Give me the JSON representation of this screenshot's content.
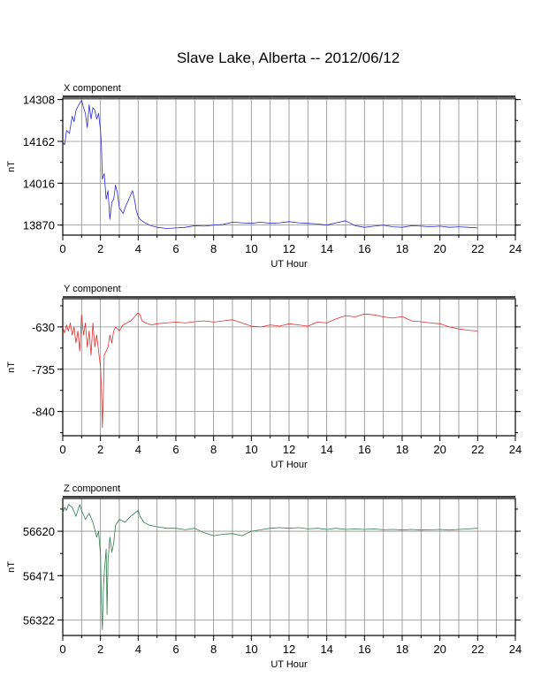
{
  "title": "Slave Lake, Alberta -- 2012/06/12",
  "colors": {
    "x": "#2a2ad0",
    "y": "#e03030",
    "z": "#2e7d4e",
    "grid": "#8c8c8c"
  },
  "chart_data": [
    {
      "type": "line",
      "panel_title": "X component",
      "xlabel": "UT Hour",
      "ylabel": "nT",
      "xlim": [
        0,
        24
      ],
      "xticks": [
        0,
        2,
        4,
        6,
        8,
        10,
        12,
        14,
        16,
        18,
        20,
        22,
        24
      ],
      "ylim": [
        13835,
        14313
      ],
      "yticks": [
        13870,
        14016,
        14162,
        14308
      ],
      "series": [
        {
          "x": [
            0,
            0.1,
            0.2,
            0.35,
            0.5,
            0.6,
            0.7,
            0.85,
            1.0,
            1.1,
            1.2,
            1.3,
            1.4,
            1.5,
            1.6,
            1.7,
            1.8,
            1.9,
            2.0,
            2.05,
            2.1,
            2.2,
            2.3,
            2.4,
            2.5,
            2.6,
            2.7,
            2.8,
            2.9,
            3.0,
            3.1,
            3.2,
            3.3,
            3.5,
            3.7,
            3.8,
            3.9,
            4.0,
            4.1,
            4.3,
            4.6,
            5.0,
            5.5,
            6.0,
            6.5,
            7.0,
            7.5,
            8.0,
            8.5,
            9.0,
            9.5,
            10.0,
            10.5,
            11.0,
            11.5,
            12.0,
            12.5,
            13.0,
            13.5,
            14.0,
            14.5,
            15.0,
            15.5,
            16.0,
            16.5,
            17.0,
            17.5,
            18.0,
            18.5,
            19.0,
            19.5,
            20.0,
            20.5,
            21.0,
            21.5,
            22.0
          ],
          "y": [
            14160,
            14150,
            14200,
            14190,
            14250,
            14230,
            14270,
            14290,
            14305,
            14280,
            14260,
            14210,
            14290,
            14240,
            14280,
            14270,
            14240,
            14260,
            14200,
            14150,
            14030,
            14050,
            13960,
            13990,
            13890,
            13950,
            13960,
            14010,
            13980,
            13930,
            13920,
            13910,
            13930,
            13960,
            13990,
            13960,
            13920,
            13900,
            13890,
            13880,
            13870,
            13862,
            13858,
            13860,
            13862,
            13868,
            13866,
            13870,
            13872,
            13880,
            13878,
            13876,
            13880,
            13876,
            13878,
            13882,
            13878,
            13876,
            13874,
            13870,
            13878,
            13885,
            13868,
            13862,
            13866,
            13870,
            13864,
            13862,
            13868,
            13866,
            13864,
            13866,
            13862,
            13864,
            13862,
            13860
          ]
        }
      ]
    },
    {
      "type": "line",
      "panel_title": "Y component",
      "xlabel": "UT Hour",
      "ylabel": "nT",
      "xlim": [
        0,
        24
      ],
      "xticks": [
        0,
        2,
        4,
        6,
        8,
        10,
        12,
        14,
        16,
        18,
        20,
        22,
        24
      ],
      "ylim": [
        -900,
        -560
      ],
      "yticks": [
        -630,
        -735,
        -840
      ],
      "series": [
        {
          "x": [
            0,
            0.1,
            0.2,
            0.3,
            0.4,
            0.5,
            0.6,
            0.7,
            0.8,
            0.9,
            1.0,
            1.1,
            1.2,
            1.3,
            1.4,
            1.5,
            1.6,
            1.7,
            1.8,
            1.9,
            2.0,
            2.05,
            2.1,
            2.15,
            2.2,
            2.3,
            2.4,
            2.5,
            2.6,
            2.7,
            2.8,
            3.0,
            3.2,
            3.4,
            3.6,
            3.8,
            4.0,
            4.1,
            4.2,
            4.4,
            4.7,
            5.0,
            5.5,
            6.0,
            6.5,
            7.0,
            7.5,
            8.0,
            8.5,
            9.0,
            9.5,
            10.0,
            10.5,
            11.0,
            11.5,
            12.0,
            12.5,
            13.0,
            13.5,
            14.0,
            14.5,
            15.0,
            15.5,
            16.0,
            16.5,
            17.0,
            17.5,
            18.0,
            18.5,
            19.0,
            19.5,
            20.0,
            20.5,
            21.0,
            21.5,
            22.0
          ],
          "y": [
            -630,
            -645,
            -625,
            -640,
            -620,
            -650,
            -630,
            -670,
            -640,
            -690,
            -600,
            -650,
            -620,
            -680,
            -640,
            -700,
            -620,
            -680,
            -650,
            -690,
            -730,
            -780,
            -880,
            -800,
            -700,
            -690,
            -680,
            -650,
            -670,
            -640,
            -630,
            -640,
            -625,
            -620,
            -615,
            -605,
            -595,
            -600,
            -615,
            -620,
            -625,
            -622,
            -620,
            -618,
            -620,
            -617,
            -615,
            -618,
            -615,
            -612,
            -620,
            -628,
            -630,
            -625,
            -628,
            -622,
            -625,
            -628,
            -618,
            -620,
            -610,
            -602,
            -605,
            -598,
            -600,
            -605,
            -608,
            -604,
            -615,
            -617,
            -620,
            -622,
            -630,
            -635,
            -638,
            -640
          ]
        }
      ]
    },
    {
      "type": "line",
      "panel_title": "Z component",
      "xlabel": "UT Hour",
      "ylabel": "nT",
      "xlim": [
        0,
        24
      ],
      "xticks": [
        0,
        2,
        4,
        6,
        8,
        10,
        12,
        14,
        16,
        18,
        20,
        22,
        24
      ],
      "ylim": [
        56270,
        56730
      ],
      "yticks": [
        56620,
        56471,
        56322
      ],
      "series": [
        {
          "x": [
            0,
            0.1,
            0.2,
            0.3,
            0.5,
            0.7,
            0.9,
            1.0,
            1.2,
            1.4,
            1.6,
            1.8,
            1.9,
            2.0,
            2.05,
            2.1,
            2.15,
            2.2,
            2.3,
            2.35,
            2.4,
            2.5,
            2.6,
            2.7,
            2.8,
            3.0,
            3.3,
            3.6,
            3.8,
            4.0,
            4.1,
            4.3,
            4.6,
            5.0,
            5.5,
            6.0,
            6.5,
            7.0,
            7.5,
            8.0,
            8.5,
            9.0,
            9.5,
            10.0,
            10.5,
            11.0,
            11.5,
            12.0,
            12.5,
            13.0,
            13.5,
            14.0,
            14.5,
            15.0,
            15.5,
            16.0,
            16.5,
            17.0,
            17.5,
            18.0,
            18.5,
            19.0,
            19.5,
            20.0,
            20.5,
            21.0,
            21.5,
            22.0
          ],
          "y": [
            56680,
            56700,
            56690,
            56710,
            56700,
            56670,
            56710,
            56690,
            56660,
            56680,
            56650,
            56600,
            56620,
            56540,
            56380,
            56290,
            56420,
            56480,
            56560,
            56340,
            56520,
            56600,
            56550,
            56580,
            56640,
            56660,
            56650,
            56670,
            56680,
            56690,
            56670,
            56650,
            56640,
            56635,
            56630,
            56630,
            56625,
            56630,
            56615,
            56605,
            56610,
            56612,
            56605,
            56620,
            56625,
            56630,
            56632,
            56630,
            56632,
            56628,
            56630,
            56626,
            56630,
            56626,
            56628,
            56626,
            56628,
            56625,
            56626,
            56624,
            56626,
            56624,
            56625,
            56626,
            56624,
            56626,
            56628,
            56630
          ]
        }
      ]
    }
  ]
}
